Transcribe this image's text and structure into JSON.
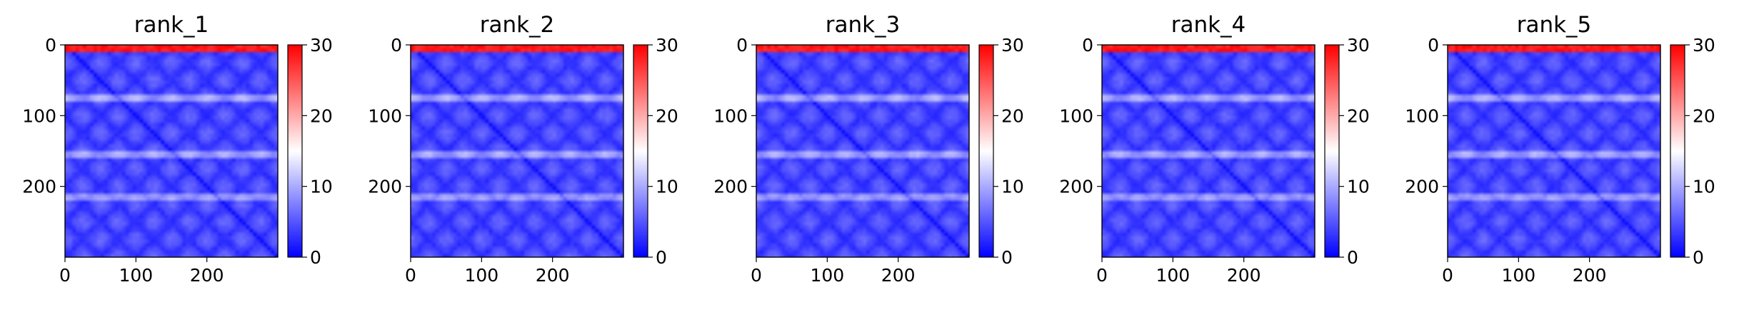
{
  "chart_data": [
    {
      "type": "heatmap",
      "title": "rank_1",
      "x_ticks": [
        "0",
        "100",
        "200"
      ],
      "y_ticks": [
        "0",
        "100",
        "200"
      ],
      "xlim": [
        0,
        300
      ],
      "ylim": [
        300,
        0
      ],
      "colorbar": {
        "ticks": [
          "0",
          "10",
          "20",
          "30"
        ],
        "range": [
          0,
          30
        ],
        "colormap": "bwr"
      },
      "bright_rows": [
        75,
        155,
        215
      ],
      "top_band_rows": [
        0,
        6
      ]
    },
    {
      "type": "heatmap",
      "title": "rank_2",
      "x_ticks": [
        "0",
        "100",
        "200"
      ],
      "y_ticks": [
        "0",
        "100",
        "200"
      ],
      "xlim": [
        0,
        300
      ],
      "ylim": [
        300,
        0
      ],
      "colorbar": {
        "ticks": [
          "0",
          "10",
          "20",
          "30"
        ],
        "range": [
          0,
          30
        ],
        "colormap": "bwr"
      },
      "bright_rows": [
        75,
        155,
        215
      ],
      "top_band_rows": [
        0,
        6
      ]
    },
    {
      "type": "heatmap",
      "title": "rank_3",
      "x_ticks": [
        "0",
        "100",
        "200"
      ],
      "y_ticks": [
        "0",
        "100",
        "200"
      ],
      "xlim": [
        0,
        300
      ],
      "ylim": [
        300,
        0
      ],
      "colorbar": {
        "ticks": [
          "0",
          "10",
          "20",
          "30"
        ],
        "range": [
          0,
          30
        ],
        "colormap": "bwr"
      },
      "bright_rows": [
        75,
        155,
        215
      ],
      "top_band_rows": [
        0,
        6
      ]
    },
    {
      "type": "heatmap",
      "title": "rank_4",
      "x_ticks": [
        "0",
        "100",
        "200"
      ],
      "y_ticks": [
        "0",
        "100",
        "200"
      ],
      "xlim": [
        0,
        300
      ],
      "ylim": [
        300,
        0
      ],
      "colorbar": {
        "ticks": [
          "0",
          "10",
          "20",
          "30"
        ],
        "range": [
          0,
          30
        ],
        "colormap": "bwr"
      },
      "bright_rows": [
        75,
        155,
        215
      ],
      "top_band_rows": [
        0,
        6
      ]
    },
    {
      "type": "heatmap",
      "title": "rank_5",
      "x_ticks": [
        "0",
        "100",
        "200"
      ],
      "y_ticks": [
        "0",
        "100",
        "200"
      ],
      "xlim": [
        0,
        300
      ],
      "ylim": [
        300,
        0
      ],
      "colorbar": {
        "ticks": [
          "0",
          "10",
          "20",
          "30"
        ],
        "range": [
          0,
          30
        ],
        "colormap": "bwr"
      },
      "bright_rows": [
        75,
        155,
        215
      ],
      "top_band_rows": [
        0,
        6
      ]
    }
  ],
  "colors": {
    "low": "#0000ff",
    "mid": "#ffffff",
    "high": "#ff0000"
  }
}
